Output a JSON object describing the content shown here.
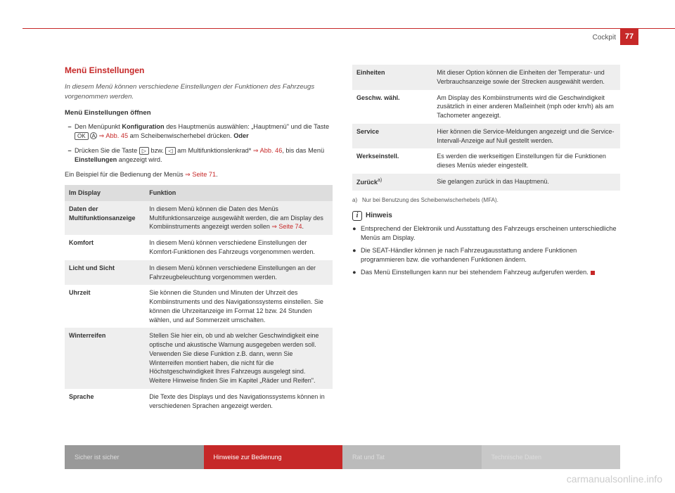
{
  "header": {
    "section": "Cockpit",
    "page": "77"
  },
  "left": {
    "title": "Menü Einstellungen",
    "intro": "In diesem Menü können verschiedene Einstellungen der Funktionen des Fahrzeugs vorgenommen werden.",
    "subhead": "Menü Einstellungen öffnen",
    "item1_a": "Den Menüpunkt ",
    "item1_b": "Konfiguration",
    "item1_c": " des Hauptmenüs auswählen: „Hauptmenü\" und die Taste ",
    "item1_ok": "OK",
    "item1_A": "A",
    "item1_ref": " ⇒ Abb. 45",
    "item1_d": " am Scheibenwischerhebel drücken. ",
    "item1_oder": "Oder",
    "item2_a": "Drücken Sie die Taste ",
    "item2_b1": "▷",
    "item2_b2": " bzw. ",
    "item2_b3": "◁",
    "item2_c": " am Multifunktionslenkrad* ",
    "item2_ref": "⇒ Abb. 46",
    "item2_d": ", bis das Menü ",
    "item2_e": "Einstellungen",
    "item2_f": " angezeigt wird.",
    "example_a": "Ein Beispiel für die Bedienung der Menüs ",
    "example_ref": "⇒ Seite 71",
    "example_b": "."
  },
  "table": {
    "h1": "Im Display",
    "h2": "Funktion",
    "rows": [
      {
        "k": "Daten der Multifunktionsanzeige",
        "v_a": "In diesem Menü können die Daten des Menüs Multifunktionsanzeige ausgewählt werden, die am Display des Kombiinstruments angezeigt werden sollen ",
        "v_ref": "⇒ Seite 74",
        "v_b": ".",
        "shade": true
      },
      {
        "k": "Komfort",
        "v": "In diesem Menü können verschiedene Einstellungen der Komfort-Funktionen des Fahrzeugs vorgenommen werden.",
        "shade": false
      },
      {
        "k": "Licht und Sicht",
        "v": "In diesem Menü können verschiedene Einstellungen an der Fahrzeugbeleuchtung vorgenommen werden.",
        "shade": true
      },
      {
        "k": "Uhrzeit",
        "v": "Sie können die Stunden und Minuten der Uhrzeit des Kombiinstruments und des Navigationssystems einstellen. Sie können die Uhrzeitanzeige im Format 12 bzw. 24 Stunden wählen, und auf Sommerzeit umschalten.",
        "shade": false
      },
      {
        "k": "Winterreifen",
        "v": "Stellen Sie hier ein, ob und ab welcher Geschwindigkeit eine optische und akustische Warnung ausgegeben werden soll. Verwenden Sie diese Funktion z.B. dann, wenn Sie Winterreifen montiert haben, die nicht für die Höchstgeschwindigkeit Ihres Fahrzeugs ausgelegt sind. Weitere Hinweise finden Sie im Kapitel „Räder und Reifen\".",
        "shade": true
      },
      {
        "k": "Sprache",
        "v": "Die Texte des Displays und des Navigationssystems können in verschiedenen Sprachen angezeigt werden.",
        "shade": false
      },
      {
        "k": "Einheiten",
        "v": "Mit dieser Option können die Einheiten der Temperatur- und Verbrauchsanzeige sowie der Strecken ausgewählt werden.",
        "shade": true
      },
      {
        "k": "Geschw. wähl.",
        "v": "Am Display des Kombiinstruments wird die Geschwindigkeit zusätzlich in einer anderen Maßeinheit (mph oder km/h) als am Tachometer angezeigt.",
        "shade": false
      },
      {
        "k": "Service",
        "v": "Hier können die Service-Meldungen angezeigt und die Service-Intervall-Anzeige auf Null gestellt werden.",
        "shade": true
      },
      {
        "k": "Werkseinstell.",
        "v": "Es werden die werkseitigen Einstellungen für die Funktionen dieses Menüs wieder eingestellt.",
        "shade": false
      },
      {
        "k_a": "Zurück",
        "k_sup": "a)",
        "v": "Sie gelangen zurück in das Hauptmenü.",
        "shade": true
      }
    ]
  },
  "footnote": {
    "sup": "a)",
    "text": "Nur bei Benutzung des Scheibenwischerhebels (MFA)."
  },
  "hinweis": {
    "title": "Hinweis",
    "b1": "Entsprechend der Elektronik und Ausstattung des Fahrzeugs erscheinen unterschiedliche Menüs am Display.",
    "b2": "Die SEAT-Händler können je nach Fahrzeugausstattung andere Funktionen programmieren bzw. die vorhandenen Funktionen ändern.",
    "b3": "Das Menü Einstellungen kann nur bei stehendem Fahrzeug aufgerufen werden."
  },
  "footer": {
    "t1": "Sicher ist sicher",
    "t2": "Hinweise zur Bedienung",
    "t3": "Rat und Tat",
    "t4": "Technische Daten"
  },
  "watermark": "carmanualsonline.info"
}
